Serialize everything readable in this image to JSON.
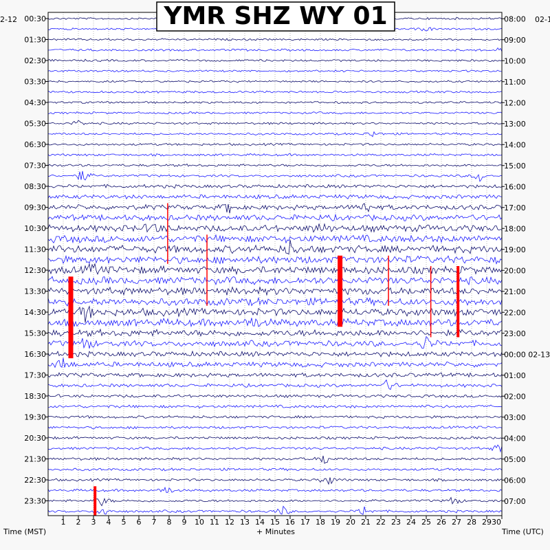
{
  "chart_data": {
    "type": "helicorder",
    "title": "YMR SHZ WY 01",
    "date_left": "2-12",
    "date_right": "02-1",
    "xlabel": "+ Minutes",
    "left_axis_label": "Time (MST)",
    "right_axis_label": "Time (UTC)",
    "x_range": [
      0,
      30
    ],
    "x_ticks": [
      "1",
      "2",
      "3",
      "4",
      "5",
      "6",
      "7",
      "8",
      "9",
      "10",
      "11",
      "12",
      "13",
      "14",
      "15",
      "16",
      "17",
      "18",
      "19",
      "20",
      "21",
      "22",
      "23",
      "24",
      "25",
      "26",
      "27",
      "28",
      "29",
      "30"
    ],
    "rows_per_hour": 2,
    "row_count": 48,
    "trace_colors": [
      "#0b0b6b",
      "#1a1aff"
    ],
    "clip_color": "#ff0000",
    "left_labels": [
      "00:30",
      "01:30",
      "02:30",
      "03:30",
      "04:30",
      "05:30",
      "06:30",
      "07:30",
      "08:30",
      "09:30",
      "10:30",
      "11:30",
      "12:30",
      "13:30",
      "14:30",
      "15:30",
      "16:30",
      "17:30",
      "18:30",
      "19:30",
      "20:30",
      "21:30",
      "22:30",
      "23:30"
    ],
    "right_labels": [
      "08:00",
      "09:00",
      "10:00",
      "11:00",
      "12:00",
      "13:00",
      "14:00",
      "15:00",
      "16:00",
      "17:00",
      "18:00",
      "19:00",
      "20:00",
      "21:00",
      "22:00",
      "23:00",
      "00:00 02-13",
      "01:00",
      "02:00",
      "03:00",
      "04:00",
      "05:00",
      "06:00",
      "07:00"
    ],
    "row_amplitude": [
      1.2,
      1.2,
      1.2,
      1.3,
      1.3,
      1.2,
      1.2,
      1.3,
      1.3,
      1.3,
      1.3,
      1.3,
      1.4,
      1.4,
      1.5,
      1.5,
      2.0,
      2.5,
      3.0,
      3.5,
      4.0,
      4.5,
      4.5,
      4.5,
      4.5,
      4.5,
      4.5,
      4.5,
      4.5,
      4.5,
      4.0,
      3.5,
      3.0,
      3.0,
      2.5,
      2.0,
      1.8,
      1.8,
      1.6,
      1.6,
      1.6,
      1.6,
      1.6,
      1.6,
      1.5,
      1.5,
      1.5,
      1.5
    ],
    "clip_events": [
      {
        "minute": 1.5,
        "start_row": 25,
        "end_row": 32,
        "width": "thick"
      },
      {
        "minute": 3.1,
        "start_row": 45,
        "end_row": 47,
        "width": "medium"
      },
      {
        "minute": 7.9,
        "start_row": 18,
        "end_row": 23,
        "width": "thin"
      },
      {
        "minute": 10.5,
        "start_row": 21,
        "end_row": 27,
        "width": "thin"
      },
      {
        "minute": 19.3,
        "start_row": 23,
        "end_row": 29,
        "width": "thick"
      },
      {
        "minute": 22.5,
        "start_row": 23,
        "end_row": 27,
        "width": "thin"
      },
      {
        "minute": 25.3,
        "start_row": 24,
        "end_row": 30,
        "width": "thin"
      },
      {
        "minute": 27.1,
        "start_row": 24,
        "end_row": 30,
        "width": "medium"
      }
    ],
    "local_events": [
      {
        "row": 1,
        "minute": 25.0,
        "amp": 4
      },
      {
        "row": 3,
        "minute": 29.9,
        "amp": 4
      },
      {
        "row": 10,
        "minute": 2.0,
        "amp": 5
      },
      {
        "row": 11,
        "minute": 21.5,
        "amp": 5
      },
      {
        "row": 15,
        "minute": 2.3,
        "amp": 12
      },
      {
        "row": 15,
        "minute": 28.5,
        "amp": 10
      },
      {
        "row": 18,
        "minute": 12.0,
        "amp": 10
      },
      {
        "row": 18,
        "minute": 21.0,
        "amp": 10
      },
      {
        "row": 20,
        "minute": 7.0,
        "amp": 10
      },
      {
        "row": 20,
        "minute": 18.0,
        "amp": 9
      },
      {
        "row": 22,
        "minute": 16.0,
        "amp": 10
      },
      {
        "row": 24,
        "minute": 3.0,
        "amp": 9
      },
      {
        "row": 28,
        "minute": 2.5,
        "amp": 14
      },
      {
        "row": 29,
        "minute": 13.5,
        "amp": 10
      },
      {
        "row": 31,
        "minute": 2.5,
        "amp": 12
      },
      {
        "row": 31,
        "minute": 25.0,
        "amp": 12
      },
      {
        "row": 33,
        "minute": 1.0,
        "amp": 12
      },
      {
        "row": 35,
        "minute": 22.5,
        "amp": 10
      },
      {
        "row": 41,
        "minute": 29.8,
        "amp": 7
      },
      {
        "row": 42,
        "minute": 18.3,
        "amp": 10
      },
      {
        "row": 44,
        "minute": 18.5,
        "amp": 10
      },
      {
        "row": 45,
        "minute": 7.8,
        "amp": 8
      },
      {
        "row": 46,
        "minute": 3.6,
        "amp": 8
      },
      {
        "row": 46,
        "minute": 26.8,
        "amp": 8
      },
      {
        "row": 47,
        "minute": 3.6,
        "amp": 10
      },
      {
        "row": 47,
        "minute": 15.5,
        "amp": 8
      },
      {
        "row": 47,
        "minute": 20.9,
        "amp": 8
      }
    ]
  }
}
